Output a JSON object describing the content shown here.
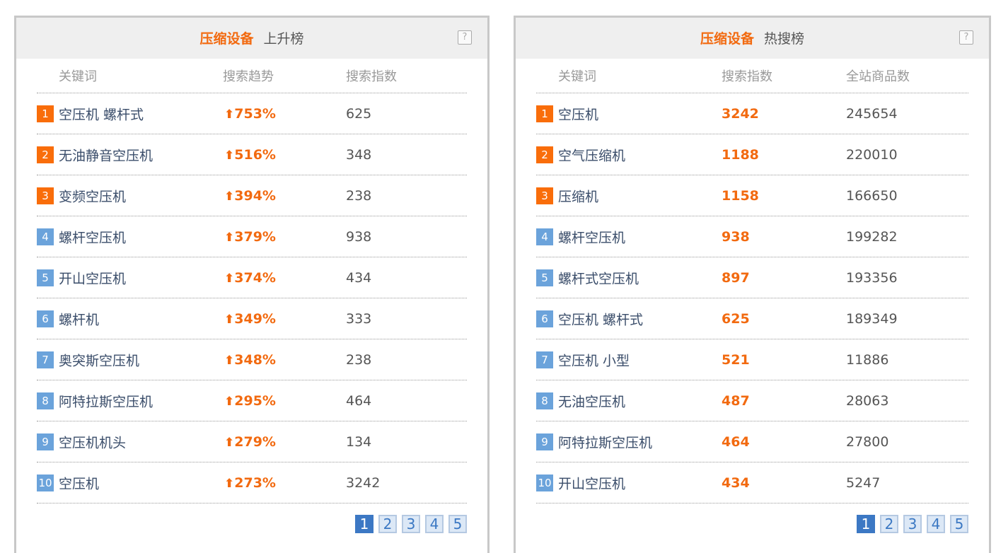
{
  "rising": {
    "category": "压缩设备",
    "title": "上升榜",
    "help": "?",
    "columns": [
      "关键词",
      "搜索趋势",
      "搜索指数"
    ],
    "rows": [
      {
        "rank": "1",
        "keyword": "空压机 螺杆式",
        "trend": "753%",
        "index": "625"
      },
      {
        "rank": "2",
        "keyword": "无油静音空压机",
        "trend": "516%",
        "index": "348"
      },
      {
        "rank": "3",
        "keyword": "变频空压机",
        "trend": "394%",
        "index": "238"
      },
      {
        "rank": "4",
        "keyword": "螺杆空压机",
        "trend": "379%",
        "index": "938"
      },
      {
        "rank": "5",
        "keyword": "开山空压机",
        "trend": "374%",
        "index": "434"
      },
      {
        "rank": "6",
        "keyword": "螺杆机",
        "trend": "349%",
        "index": "333"
      },
      {
        "rank": "7",
        "keyword": "奥突斯空压机",
        "trend": "348%",
        "index": "238"
      },
      {
        "rank": "8",
        "keyword": "阿特拉斯空压机",
        "trend": "295%",
        "index": "464"
      },
      {
        "rank": "9",
        "keyword": "空压机机头",
        "trend": "279%",
        "index": "134"
      },
      {
        "rank": "10",
        "keyword": "空压机",
        "trend": "273%",
        "index": "3242"
      }
    ],
    "pages": [
      "1",
      "2",
      "3",
      "4",
      "5"
    ],
    "current_page": "1"
  },
  "hot": {
    "category": "压缩设备",
    "title": "热搜榜",
    "help": "?",
    "columns": [
      "关键词",
      "搜索指数",
      "全站商品数"
    ],
    "rows": [
      {
        "rank": "1",
        "keyword": "空压机",
        "index": "3242",
        "count": "245654"
      },
      {
        "rank": "2",
        "keyword": "空气压缩机",
        "index": "1188",
        "count": "220010"
      },
      {
        "rank": "3",
        "keyword": "压缩机",
        "index": "1158",
        "count": "166650"
      },
      {
        "rank": "4",
        "keyword": "螺杆空压机",
        "index": "938",
        "count": "199282"
      },
      {
        "rank": "5",
        "keyword": "螺杆式空压机",
        "index": "897",
        "count": "193356"
      },
      {
        "rank": "6",
        "keyword": "空压机 螺杆式",
        "index": "625",
        "count": "189349"
      },
      {
        "rank": "7",
        "keyword": "空压机 小型",
        "index": "521",
        "count": "11886"
      },
      {
        "rank": "8",
        "keyword": "无油空压机",
        "index": "487",
        "count": "28063"
      },
      {
        "rank": "9",
        "keyword": "阿特拉斯空压机",
        "index": "464",
        "count": "27800"
      },
      {
        "rank": "10",
        "keyword": "开山空压机",
        "index": "434",
        "count": "5247"
      }
    ],
    "pages": [
      "1",
      "2",
      "3",
      "4",
      "5"
    ],
    "current_page": "1"
  },
  "colors": {
    "accent": "#f26a10",
    "badge_top": "#f96d0a",
    "badge_rest": "#6ba3db",
    "pager_active": "#3c78c4"
  }
}
